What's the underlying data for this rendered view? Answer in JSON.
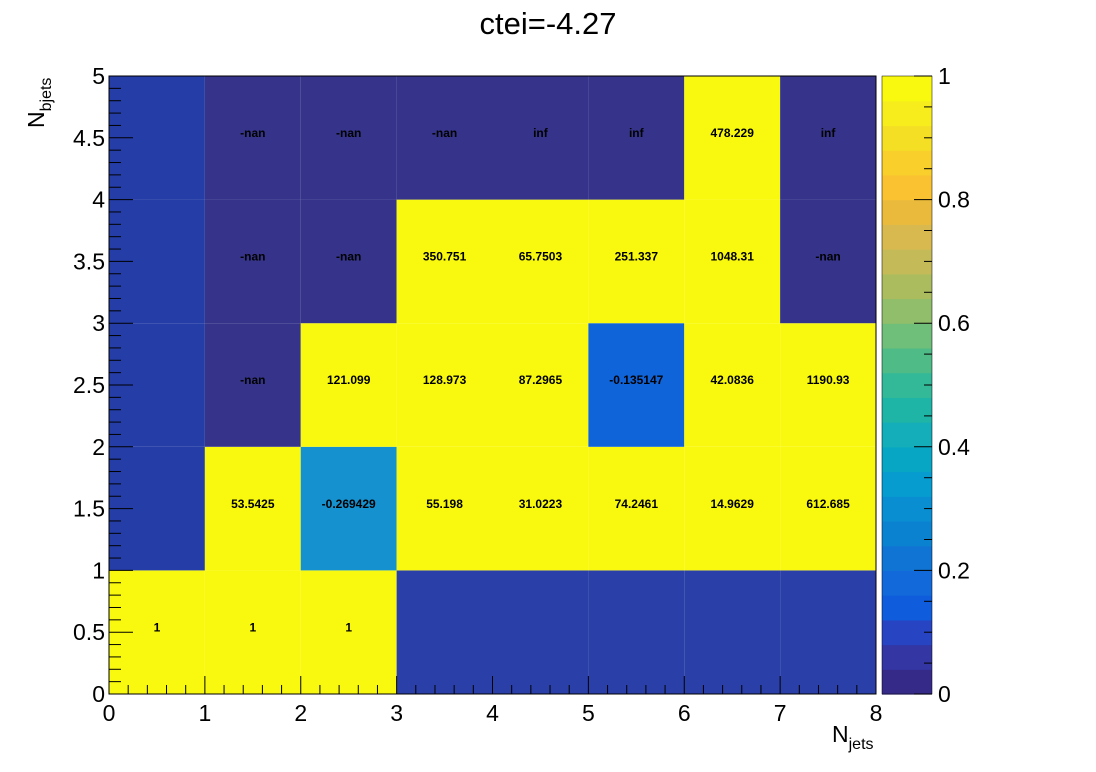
{
  "chart_data": {
    "type": "heatmap",
    "title": "ctei=-4.27",
    "xlabel": {
      "main": "N",
      "sub": "jets"
    },
    "ylabel": {
      "main": "N",
      "sub": "bjets"
    },
    "xlim": [
      0,
      8
    ],
    "ylim": [
      0,
      5
    ],
    "x_bin_edges": [
      0,
      1,
      2,
      3,
      4,
      5,
      6,
      7,
      8
    ],
    "y_bin_edges": [
      0,
      1,
      2,
      3,
      4,
      5
    ],
    "x_tick_labels": [
      "0",
      "1",
      "2",
      "3",
      "4",
      "5",
      "6",
      "7",
      "8"
    ],
    "y_tick_labels": [
      "0",
      "0.5",
      "1",
      "1.5",
      "2",
      "2.5",
      "3",
      "3.5",
      "4",
      "4.5",
      "5"
    ],
    "colorbar": {
      "min": 0,
      "max": 1,
      "tick_labels": [
        "0",
        "0.2",
        "0.4",
        "0.6",
        "0.8",
        "1"
      ]
    },
    "rows": [
      {
        "y_range": [
          0,
          1
        ],
        "labels": [
          "1",
          "1",
          "1",
          "",
          "",
          "",
          "",
          ""
        ]
      },
      {
        "y_range": [
          1,
          2
        ],
        "labels": [
          "",
          "53.5425",
          "-0.269429",
          "55.198",
          "31.0223",
          "74.2461",
          "14.9629",
          "612.685"
        ]
      },
      {
        "y_range": [
          2,
          3
        ],
        "labels": [
          "",
          "-nan",
          "121.099",
          "128.973",
          "87.2965",
          "-0.135147",
          "42.0836",
          "1190.93"
        ]
      },
      {
        "y_range": [
          3,
          4
        ],
        "labels": [
          "",
          "-nan",
          "-nan",
          "350.751",
          "65.7503",
          "251.337",
          "1048.31",
          "-nan"
        ]
      },
      {
        "y_range": [
          4,
          5
        ],
        "labels": [
          "",
          "-nan",
          "-nan",
          "-nan",
          "inf",
          "inf",
          "478.229",
          "inf"
        ]
      }
    ],
    "fill_colors": [
      [
        "#f9f90f",
        "#f9f90f",
        "#f9f90f",
        "#2a3fa8",
        "#2a3fa8",
        "#2a3fa8",
        "#2a3fa8",
        "#2a3fa8"
      ],
      [
        "#253da6",
        "#f9f90f",
        "#1591d0",
        "#f9f90f",
        "#f9f90f",
        "#f9f90f",
        "#f9f90f",
        "#f9f90f"
      ],
      [
        "#253da6",
        "#35348a",
        "#f9f90f",
        "#f9f90f",
        "#f9f90f",
        "#1064da",
        "#f9f90f",
        "#f9f90f"
      ],
      [
        "#253da6",
        "#35348a",
        "#35348a",
        "#f9f90f",
        "#f9f90f",
        "#f9f90f",
        "#f9f90f",
        "#35348a"
      ],
      [
        "#253da6",
        "#35348a",
        "#35348a",
        "#35348a",
        "#35348a",
        "#35348a",
        "#f9f90f",
        "#35348a"
      ]
    ],
    "palette": [
      "#352a87",
      "#3336a3",
      "#2745c2",
      "#0f5cdd",
      "#1269da",
      "#0f74d3",
      "#0b82d0",
      "#098ed2",
      "#079ccf",
      "#07a6c5",
      "#13aeb9",
      "#1fb5a6",
      "#33b998",
      "#4fbc87",
      "#6fbe79",
      "#90be6a",
      "#abbc5f",
      "#c4bb58",
      "#d8b94f",
      "#e9ba3c",
      "#fac231",
      "#f8cf2b",
      "#f4df25",
      "#f7ed1d",
      "#f9f90f"
    ]
  }
}
